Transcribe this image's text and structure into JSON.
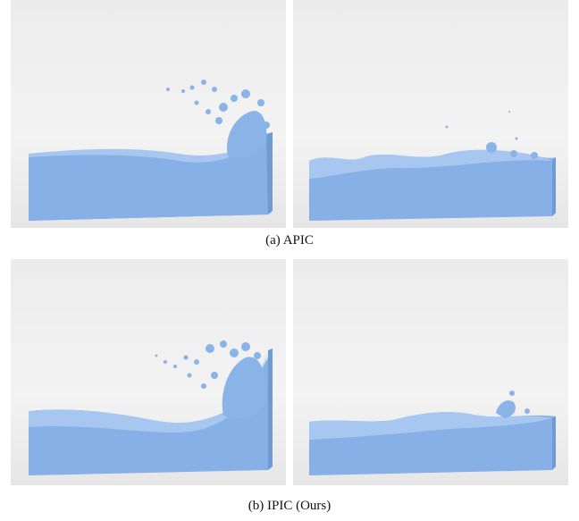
{
  "figure": {
    "rows": [
      {
        "caption": "(a) APIC"
      },
      {
        "caption": "(b) IPIC (Ours)"
      }
    ]
  }
}
